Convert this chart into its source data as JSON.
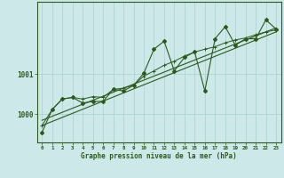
{
  "background_color": "#cce8e8",
  "grid_color": "#aacfcf",
  "line_color": "#2d5a1b",
  "marker_color": "#2d5a1b",
  "xlabel": "Graphe pression niveau de la mer (hPa)",
  "xlim": [
    -0.5,
    23.5
  ],
  "ylim": [
    999.3,
    1002.8
  ],
  "yticks": [
    1000,
    1001
  ],
  "xticks": [
    0,
    1,
    2,
    3,
    4,
    5,
    6,
    7,
    8,
    9,
    10,
    11,
    12,
    13,
    14,
    15,
    16,
    17,
    18,
    19,
    20,
    21,
    22,
    23
  ],
  "trend1": {
    "x": [
      0,
      23
    ],
    "y": [
      999.72,
      1002.05
    ]
  },
  "trend2": {
    "x": [
      0,
      23
    ],
    "y": [
      999.85,
      1002.15
    ]
  },
  "series_smooth": {
    "x": [
      0,
      1,
      2,
      3,
      4,
      5,
      6,
      7,
      8,
      9,
      10,
      11,
      12,
      13,
      14,
      15,
      16,
      17,
      18,
      19,
      20,
      21,
      22,
      23
    ],
    "y": [
      999.72,
      1000.12,
      1000.38,
      1000.42,
      1000.38,
      1000.44,
      1000.42,
      1000.62,
      1000.65,
      1000.72,
      1000.95,
      1001.08,
      1001.22,
      1001.32,
      1001.45,
      1001.55,
      1001.62,
      1001.68,
      1001.78,
      1001.85,
      1001.9,
      1001.98,
      1002.05,
      1002.1
    ]
  },
  "series_main": {
    "x": [
      0,
      1,
      2,
      3,
      4,
      5,
      6,
      7,
      8,
      9,
      10,
      11,
      12,
      13,
      14,
      15,
      16,
      17,
      18,
      19,
      20,
      21,
      22,
      23
    ],
    "y": [
      999.55,
      1000.12,
      1000.38,
      1000.42,
      1000.28,
      1000.32,
      1000.32,
      1000.62,
      1000.58,
      1000.72,
      1001.02,
      1001.62,
      1001.82,
      1001.08,
      1001.42,
      1001.55,
      1000.58,
      1001.88,
      1002.18,
      1001.72,
      1001.88,
      1001.88,
      1002.35,
      1002.12
    ]
  }
}
